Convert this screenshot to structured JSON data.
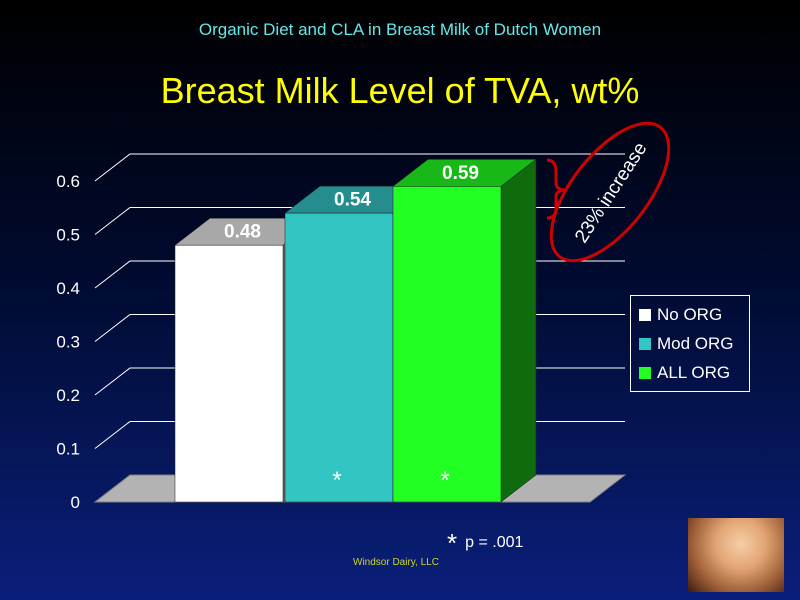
{
  "slide": {
    "subtitle": "Organic Diet and CLA in Breast Milk of Dutch Women",
    "title": "Breast Milk Level of TVA, wt%",
    "annotation": "23% increase",
    "footnote_marker": "*",
    "footnote_text": "p = .001",
    "credit": "Windsor Dairy, LLC",
    "colors": {
      "subtitle": "#66e6e6",
      "title": "#ffff00",
      "annotation_ellipse": "#cc0000",
      "credit": "#c9d626"
    }
  },
  "chart_data": {
    "type": "bar",
    "categories": [
      "No ORG",
      "Mod ORG",
      "ALL ORG"
    ],
    "values": [
      0.48,
      0.54,
      0.59
    ],
    "data_labels": [
      "0.48",
      "0.54",
      "0.59"
    ],
    "significance_markers": [
      "",
      "*",
      "*"
    ],
    "series_colors": [
      "#ffffff",
      "#33c4c4",
      "#22ff22"
    ],
    "y_ticks": [
      "0",
      "0.1",
      "0.2",
      "0.3",
      "0.4",
      "0.5",
      "0.6"
    ],
    "ylim": [
      0,
      0.6
    ],
    "legend": {
      "placement": "right",
      "items": [
        "No ORG",
        "Mod ORG",
        "ALL ORG"
      ]
    },
    "grid": true,
    "style": "3d"
  }
}
